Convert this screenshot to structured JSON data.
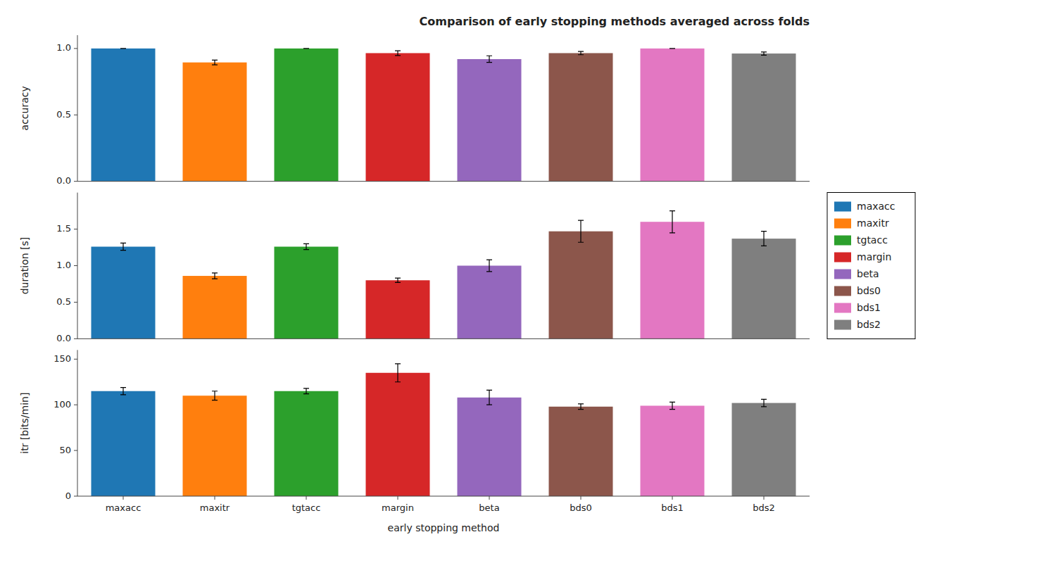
{
  "chart_data": [
    {
      "type": "bar",
      "title": "Comparison of early stopping methods averaged across folds",
      "categories": [
        "maxacc",
        "maxitr",
        "tgtacc",
        "margin",
        "beta",
        "bds0",
        "bds1",
        "bds2"
      ],
      "values": [
        1.0,
        0.895,
        1.0,
        0.965,
        0.92,
        0.965,
        1.0,
        0.962
      ],
      "errors": [
        0.0,
        0.018,
        0.0,
        0.018,
        0.025,
        0.012,
        0.0,
        0.012
      ],
      "colors": [
        "#1f77b4",
        "#ff7f0e",
        "#2ca02c",
        "#d62728",
        "#9467bd",
        "#8c564b",
        "#e377c2",
        "#7f7f7f"
      ],
      "ylabel": "accuracy",
      "ylim": [
        0.0,
        1.1
      ],
      "yticks": [
        {
          "value": 0.0,
          "label": "0.0"
        },
        0.5,
        {
          "value": 1.0,
          "label": "1.0"
        }
      ],
      "grid": false,
      "tick_labels": "y"
    },
    {
      "type": "bar",
      "categories": [
        "maxacc",
        "maxitr",
        "tgtacc",
        "margin",
        "beta",
        "bds0",
        "bds1",
        "bds2"
      ],
      "values": [
        1.26,
        0.86,
        1.26,
        0.8,
        1.0,
        1.47,
        1.6,
        1.37
      ],
      "errors": [
        0.05,
        0.04,
        0.04,
        0.03,
        0.08,
        0.15,
        0.15,
        0.1
      ],
      "colors": [
        "#1f77b4",
        "#ff7f0e",
        "#2ca02c",
        "#d62728",
        "#9467bd",
        "#8c564b",
        "#e377c2",
        "#7f7f7f"
      ],
      "ylabel": "duration [s]",
      "ylim": [
        0.0,
        2.0
      ],
      "yticks": [
        {
          "value": 0.0,
          "label": "0.0"
        },
        0.5,
        {
          "value": 1.0,
          "label": "1.0"
        },
        1.5
      ],
      "grid": false,
      "tick_labels": "y",
      "legend": "right"
    },
    {
      "type": "bar",
      "categories": [
        "maxacc",
        "maxitr",
        "tgtacc",
        "margin",
        "beta",
        "bds0",
        "bds1",
        "bds2"
      ],
      "values": [
        115,
        110,
        115,
        135,
        108,
        98,
        99,
        102
      ],
      "errors": [
        4,
        5,
        3,
        10,
        8,
        3,
        4,
        4
      ],
      "colors": [
        "#1f77b4",
        "#ff7f0e",
        "#2ca02c",
        "#d62728",
        "#9467bd",
        "#8c564b",
        "#e377c2",
        "#7f7f7f"
      ],
      "xlabel": "early stopping method",
      "ylabel": "itr [bits/min]",
      "ylim": [
        0,
        160
      ],
      "yticks": [
        0,
        50,
        100,
        150
      ],
      "grid": false
    }
  ]
}
